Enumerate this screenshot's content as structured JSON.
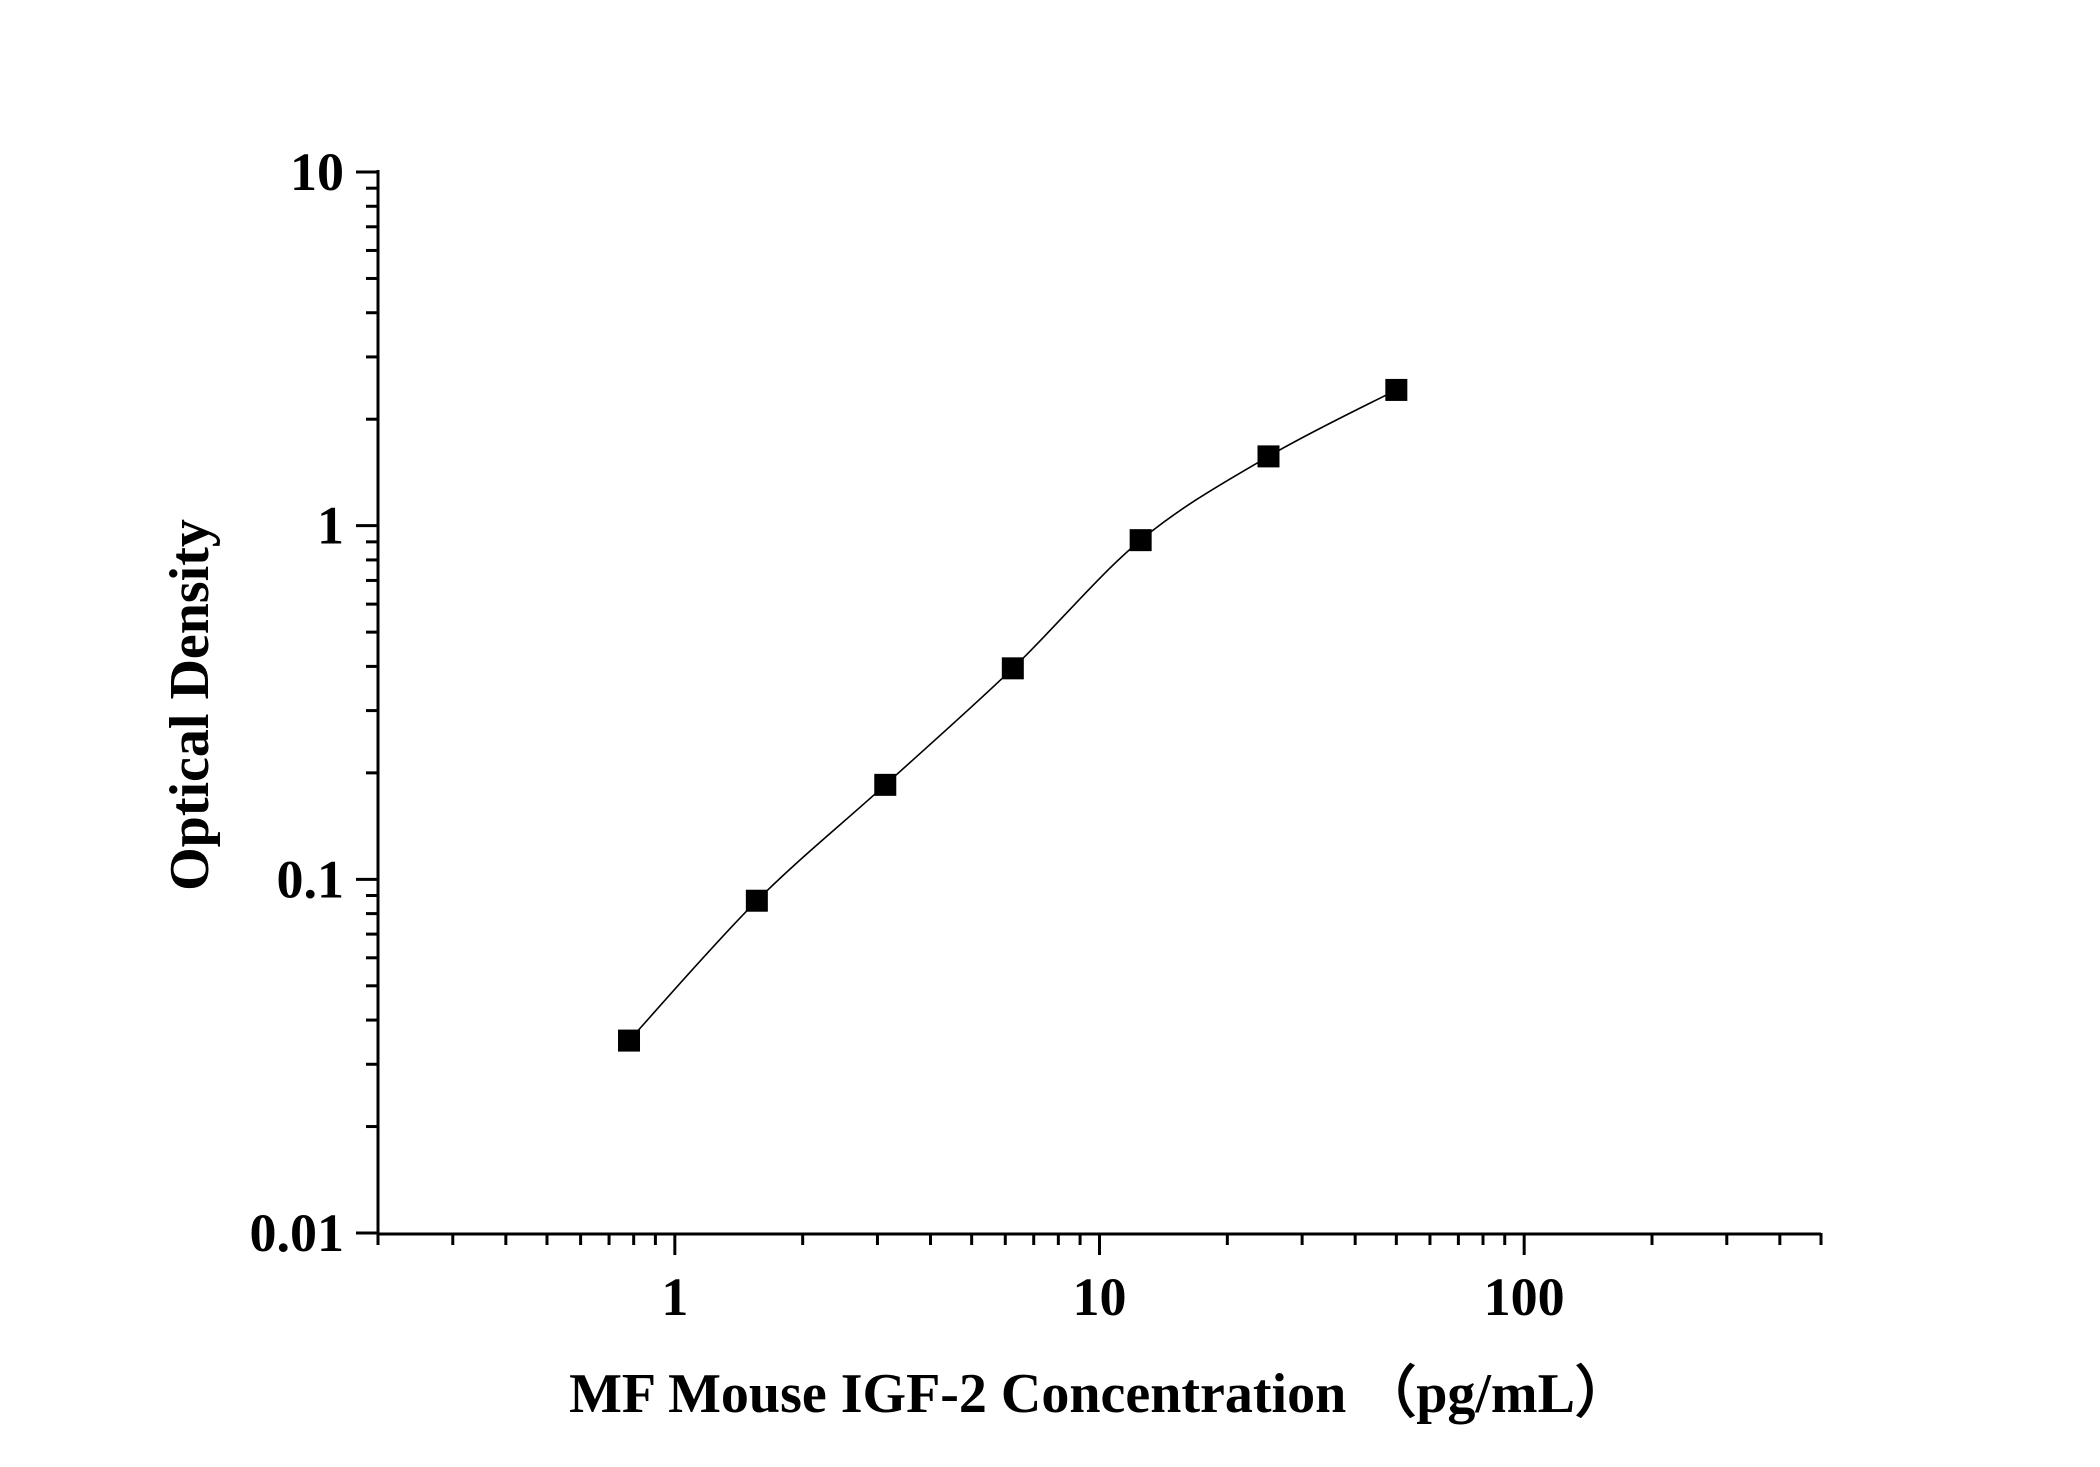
{
  "chart_data": {
    "type": "scatter",
    "title": "",
    "xlabel": "MF Mouse IGF-2 Concentration （pg/mL）",
    "ylabel": "Optical Density",
    "x_scale": "log",
    "y_scale": "log",
    "xlim": [
      0.2,
      500
    ],
    "ylim": [
      0.01,
      10
    ],
    "x_ticks": [
      {
        "value": 1,
        "label": "1"
      },
      {
        "value": 10,
        "label": "10"
      },
      {
        "value": 100,
        "label": "100"
      }
    ],
    "y_ticks": [
      {
        "value": 0.01,
        "label": "0.01"
      },
      {
        "value": 0.1,
        "label": "0.1"
      },
      {
        "value": 1,
        "label": "1"
      },
      {
        "value": 10,
        "label": "10"
      }
    ],
    "grid": false,
    "legend": "none",
    "series": [
      {
        "x": [
          0.78,
          1.56,
          3.13,
          6.25,
          12.5,
          25,
          50
        ],
        "y": [
          0.035,
          0.087,
          0.185,
          0.395,
          0.91,
          1.57,
          2.42
        ],
        "marker": "square",
        "fit": "smooth curve through points",
        "color": "#000000"
      }
    ]
  }
}
